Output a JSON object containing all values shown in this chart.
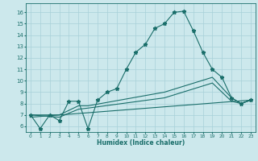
{
  "title": "",
  "xlabel": "Humidex (Indice chaleur)",
  "xlim": [
    -0.5,
    23.5
  ],
  "ylim": [
    5.5,
    16.8
  ],
  "yticks": [
    6,
    7,
    8,
    9,
    10,
    11,
    12,
    13,
    14,
    15,
    16
  ],
  "xticks": [
    0,
    1,
    2,
    3,
    4,
    5,
    6,
    7,
    8,
    9,
    10,
    11,
    12,
    13,
    14,
    15,
    16,
    17,
    18,
    19,
    20,
    21,
    22,
    23
  ],
  "bg_color": "#cce8ec",
  "grid_color": "#a8d0d8",
  "line_color": "#1a6e6a",
  "line1_x": [
    0,
    1,
    2,
    3,
    4,
    5,
    6,
    7,
    8,
    9,
    10,
    11,
    12,
    13,
    14,
    15,
    16,
    17,
    18,
    19,
    20,
    21,
    22,
    23
  ],
  "line1_y": [
    7.0,
    5.8,
    7.0,
    6.5,
    8.2,
    8.2,
    5.8,
    8.3,
    9.0,
    9.3,
    11.0,
    12.5,
    13.2,
    14.6,
    15.0,
    16.0,
    16.1,
    14.4,
    12.5,
    11.0,
    10.3,
    8.5,
    8.0,
    8.3
  ],
  "line2_x": [
    0,
    3,
    5,
    6,
    14,
    19,
    21,
    22,
    23
  ],
  "line2_y": [
    7.0,
    7.0,
    7.8,
    7.8,
    9.0,
    10.3,
    8.5,
    8.0,
    8.3
  ],
  "line3_x": [
    0,
    3,
    5,
    6,
    14,
    19,
    21,
    22,
    23
  ],
  "line3_y": [
    7.0,
    6.8,
    7.5,
    7.6,
    8.5,
    9.8,
    8.2,
    8.0,
    8.3
  ],
  "line4_x": [
    0,
    23
  ],
  "line4_y": [
    6.8,
    8.3
  ]
}
